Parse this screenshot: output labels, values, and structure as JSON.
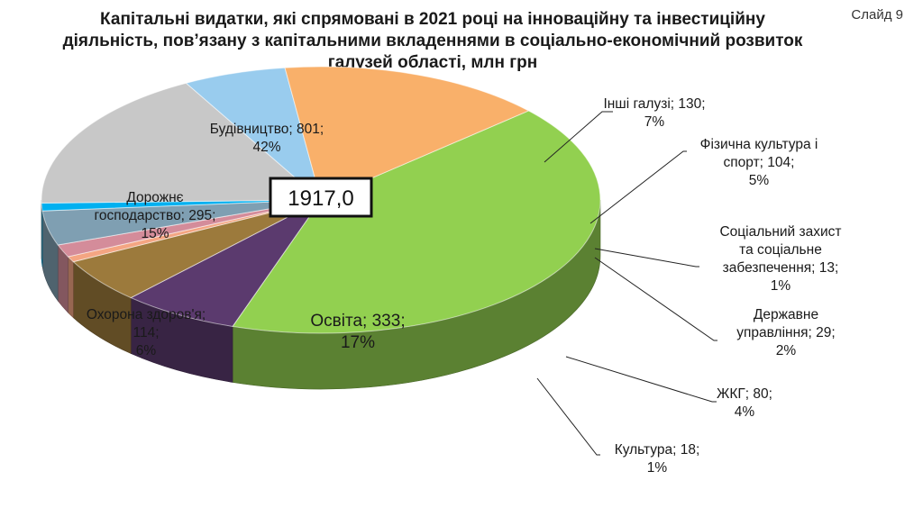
{
  "slide": {
    "number_label": "Слайд 9"
  },
  "chart_data": {
    "type": "pie",
    "title": "Капітальні видатки, які спрямовані в 2021 році на інноваційну та інвестиційну діяльність, пов’язану з капітальними вкладеннями в соціально-економічний розвиток галузей області, млн грн",
    "title_lines": [
      "Капітальні видатки, які спрямовані в 2021 році на інноваційну та інвестиційну",
      "діяльність, пов’язану з капітальними вкладеннями в соціально-економічний розвиток",
      "галузей області, млн грн"
    ],
    "total_label": "1917,0",
    "slices": [
      {
        "name": "Будівництво",
        "value": 801,
        "percent": "42%",
        "color": "#92d050",
        "label_lines": [
          "Будівництво; 801;",
          "42%"
        ]
      },
      {
        "name": "Інші галузі",
        "value": 130,
        "percent": "7%",
        "color": "#5b3a6e",
        "label_lines": [
          "Інші галузі; 130;",
          "7%"
        ]
      },
      {
        "name": "Фізична культура і спорт",
        "value": 104,
        "percent": "5%",
        "color": "#9c7a3c",
        "label_lines": [
          "Фізична культура  і",
          "спорт; 104;",
          "5%"
        ]
      },
      {
        "name": "Соціальний захист та соціальне забезпечення",
        "value": 13,
        "percent": "1%",
        "color": "#f4a582",
        "label_lines": [
          "Соціальний захист",
          "та соціальне",
          "забезпечення; 13;",
          "1%"
        ]
      },
      {
        "name": "Державне управління",
        "value": 29,
        "percent": "2%",
        "color": "#d48c9a",
        "label_lines": [
          "Державне",
          "управління; 29;",
          "2%"
        ]
      },
      {
        "name": "ЖКГ",
        "value": 80,
        "percent": "4%",
        "color": "#7f9fb2",
        "label_lines": [
          "ЖКГ; 80;",
          "4%"
        ]
      },
      {
        "name": "Культура",
        "value": 18,
        "percent": "1%",
        "color": "#00b0f0",
        "label_lines": [
          "Культура;  18;",
          "1%"
        ]
      },
      {
        "name": "Освіта",
        "value": 333,
        "percent": "17%",
        "color": "#c8c8c8",
        "label_lines": [
          "Освіта; 333;",
          "17%"
        ]
      },
      {
        "name": "Охорона здоров'я",
        "value": 114,
        "percent": "6%",
        "color": "#99ccee",
        "label_lines": [
          "Охорона здоров'я;",
          "114;",
          "6%"
        ]
      },
      {
        "name": "Дорожнє господарство",
        "value": 295,
        "percent": "15%",
        "color": "#f9b06a",
        "label_lines": [
          "Дорожнє",
          "господарство; 295;",
          "15%"
        ]
      }
    ]
  }
}
